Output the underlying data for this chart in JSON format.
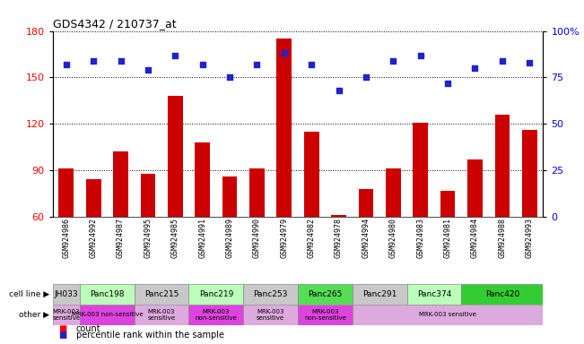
{
  "title": "GDS4342 / 210737_at",
  "samples": [
    "GSM924986",
    "GSM924992",
    "GSM924987",
    "GSM924995",
    "GSM924985",
    "GSM924991",
    "GSM924989",
    "GSM924990",
    "GSM924979",
    "GSM924982",
    "GSM924978",
    "GSM924994",
    "GSM924980",
    "GSM924983",
    "GSM924981",
    "GSM924984",
    "GSM924988",
    "GSM924993"
  ],
  "counts": [
    91,
    84,
    102,
    88,
    138,
    108,
    86,
    91,
    175,
    115,
    61,
    78,
    91,
    121,
    77,
    97,
    126,
    116
  ],
  "percentiles": [
    82,
    84,
    84,
    79,
    87,
    82,
    75,
    82,
    88,
    82,
    68,
    75,
    84,
    87,
    72,
    80,
    84,
    83
  ],
  "cell_lines": [
    {
      "name": "JH033",
      "start": 0,
      "end": 1,
      "color": "#c8c8c8"
    },
    {
      "name": "Panc198",
      "start": 1,
      "end": 3,
      "color": "#bbffbb"
    },
    {
      "name": "Panc215",
      "start": 3,
      "end": 5,
      "color": "#c8c8c8"
    },
    {
      "name": "Panc219",
      "start": 5,
      "end": 7,
      "color": "#bbffbb"
    },
    {
      "name": "Panc253",
      "start": 7,
      "end": 9,
      "color": "#c8c8c8"
    },
    {
      "name": "Panc265",
      "start": 9,
      "end": 11,
      "color": "#55dd55"
    },
    {
      "name": "Panc291",
      "start": 11,
      "end": 13,
      "color": "#c8c8c8"
    },
    {
      "name": "Panc374",
      "start": 13,
      "end": 15,
      "color": "#bbffbb"
    },
    {
      "name": "Panc420",
      "start": 15,
      "end": 18,
      "color": "#33cc33"
    }
  ],
  "other_annotations": [
    {
      "label": "MRK-003\nsensitive",
      "start": 0,
      "end": 1,
      "color": "#ddaadd"
    },
    {
      "label": "MRK-003 non-sensitive",
      "start": 1,
      "end": 3,
      "color": "#dd44dd"
    },
    {
      "label": "MRK-003\nsensitive",
      "start": 3,
      "end": 5,
      "color": "#ddaadd"
    },
    {
      "label": "MRK-003\nnon-sensitive",
      "start": 5,
      "end": 7,
      "color": "#dd44dd"
    },
    {
      "label": "MRK-003\nsensitive",
      "start": 7,
      "end": 9,
      "color": "#ddaadd"
    },
    {
      "label": "MRK-003\nnon-sensitive",
      "start": 9,
      "end": 11,
      "color": "#dd44dd"
    },
    {
      "label": "MRK-003 sensitive",
      "start": 11,
      "end": 18,
      "color": "#ddaadd"
    }
  ],
  "ylim_left": [
    60,
    180
  ],
  "ylim_right": [
    0,
    100
  ],
  "yticks_left": [
    60,
    90,
    120,
    150,
    180
  ],
  "yticks_right": [
    0,
    25,
    50,
    75,
    100
  ],
  "bar_color": "#cc0000",
  "scatter_color": "#2222cc"
}
